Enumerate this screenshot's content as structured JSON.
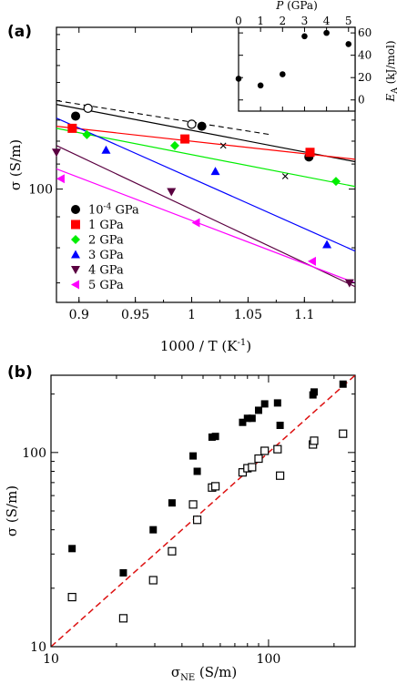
{
  "chart_data": [
    {
      "type": "scatter",
      "panel_label": "(a)",
      "xlabel": "1000 / T (K",
      "xlabel_sup": "-1",
      "xlabel_end": ")",
      "ylabel": "σ (S/m)",
      "xlim": [
        0.88,
        1.145
      ],
      "ylim": [
        65,
        185
      ],
      "yscale": "log",
      "x_ticks": [
        "0.9",
        "0.95",
        "1",
        "1.05",
        "1.1"
      ],
      "x_tick_values": [
        0.9,
        0.95,
        1.0,
        1.05,
        1.1
      ],
      "y_ticks": [
        "100"
      ],
      "y_tick_values": [
        100
      ],
      "legend_position": "lower-left",
      "series": [
        {
          "name": "10",
          "name_sup": "-4",
          "name_end": " GPa",
          "color": "#000000",
          "marker": "circle",
          "x": [
            0.897,
            1.009,
            1.104
          ],
          "y": [
            132,
            127,
            113
          ],
          "fit": [
            [
              0.88,
              138
            ],
            [
              1.145,
              111
            ]
          ]
        },
        {
          "name": "1 GPa",
          "color": "#ff0000",
          "marker": "square",
          "x": [
            0.894,
            0.994,
            1.105
          ],
          "y": [
            126,
            121,
            115
          ],
          "fit": [
            [
              0.88,
              127
            ],
            [
              1.145,
              112
            ]
          ]
        },
        {
          "name": "2 GPa",
          "color": "#00ee00",
          "marker": "diamond",
          "x": [
            0.907,
            0.985,
            1.128
          ],
          "y": [
            123,
            118,
            103
          ],
          "fit": [
            [
              0.88,
              126
            ],
            [
              1.145,
              101
            ]
          ]
        },
        {
          "name": "3 GPa",
          "color": "#0000ff",
          "marker": "triangle-up",
          "x": [
            0.924,
            1.021,
            1.12
          ],
          "y": [
            116,
            107,
            81
          ],
          "fit": [
            [
              0.88,
              131
            ],
            [
              1.145,
              79
            ]
          ]
        },
        {
          "name": "4 GPa",
          "color": "#5a0040",
          "marker": "triangle-down",
          "x": [
            0.88,
            0.982,
            1.14
          ],
          "y": [
            115,
            99,
            70
          ],
          "fit": [
            [
              0.88,
              118
            ],
            [
              1.145,
              69
            ]
          ]
        },
        {
          "name": "5 GPa",
          "color": "#ff00ff",
          "marker": "triangle-left",
          "x": [
            0.884,
            1.004,
            1.107
          ],
          "y": [
            104,
            88,
            76
          ],
          "fit": [
            [
              0.88,
              108
            ],
            [
              1.145,
              70
            ]
          ]
        }
      ],
      "extra_points": {
        "open_circles": {
          "x": [
            0.908,
            1.0
          ],
          "y": [
            136,
            128
          ]
        },
        "crosses": {
          "x": [
            1.028,
            1.083
          ],
          "y": [
            118,
            105
          ]
        }
      },
      "dashed_line": [
        [
          0.88,
          140
        ],
        [
          1.07,
          123
        ]
      ],
      "inset": {
        "xlabel": "P",
        "xlabel_end": " (GPa)",
        "ylabel": "E",
        "ylabel_sub": "A",
        "ylabel_end": " (kJ/mol)",
        "xlim": [
          0,
          5.3
        ],
        "ylim": [
          -10,
          65
        ],
        "x_ticks": [
          "0",
          "1",
          "2",
          "3",
          "4",
          "5"
        ],
        "x_tick_values": [
          0,
          1,
          2,
          3,
          4,
          5
        ],
        "y_ticks": [
          "0",
          "20",
          "40",
          "60"
        ],
        "y_tick_values": [
          0,
          20,
          40,
          60
        ],
        "x": [
          0,
          1,
          2,
          3,
          4,
          5
        ],
        "y": [
          19,
          13,
          23,
          57,
          60,
          50
        ]
      }
    },
    {
      "type": "scatter",
      "panel_label": "(b)",
      "xlabel": "σ",
      "xlabel_sub": "NE",
      "xlabel_end": " (S/m)",
      "ylabel": "σ (S/m)",
      "xscale": "log",
      "yscale": "log",
      "xlim": [
        10,
        250
      ],
      "ylim": [
        10,
        250
      ],
      "x_ticks": [
        "10",
        "100"
      ],
      "x_tick_values": [
        10,
        100
      ],
      "y_ticks": [
        "10",
        "100"
      ],
      "y_tick_values": [
        10,
        100
      ],
      "reference_line": {
        "style": "dashed",
        "color": "#dd1111",
        "points": [
          [
            10,
            10
          ],
          [
            250,
            250
          ]
        ]
      },
      "series": [
        {
          "marker": "filled-square",
          "x": [
            12.5,
            21.5,
            29.5,
            36,
            45,
            47,
            55,
            57,
            76,
            80,
            84,
            90,
            96,
            110,
            113,
            160,
            162,
            220
          ],
          "y": [
            32,
            24,
            40,
            55,
            96,
            80,
            120,
            121,
            143,
            150,
            150,
            165,
            178,
            180,
            138,
            198,
            205,
            225
          ]
        },
        {
          "marker": "open-square",
          "x": [
            12.5,
            21.5,
            29.5,
            36,
            45,
            47,
            55,
            57,
            76,
            80,
            84,
            90,
            96,
            110,
            113,
            160,
            162,
            220
          ],
          "y": [
            18,
            14,
            22,
            31,
            54,
            45,
            66,
            67,
            79,
            83,
            84,
            93,
            102,
            104,
            76,
            110,
            115,
            125
          ]
        }
      ]
    }
  ]
}
